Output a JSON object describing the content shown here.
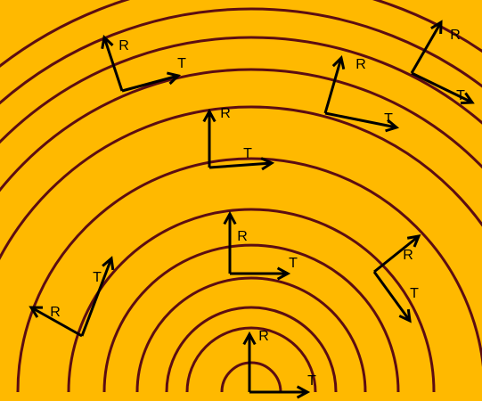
{
  "axes": [
    {
      "r": "R",
      "t": "T"
    },
    {
      "r": "R",
      "t": "T"
    },
    {
      "r": "R",
      "t": "T"
    },
    {
      "r": "R",
      "t": "T"
    },
    {
      "r": "R",
      "t": "T"
    },
    {
      "r": "R",
      "t": "T"
    },
    {
      "r": "R",
      "t": "T"
    },
    {
      "r": "R",
      "t": "T"
    }
  ]
}
